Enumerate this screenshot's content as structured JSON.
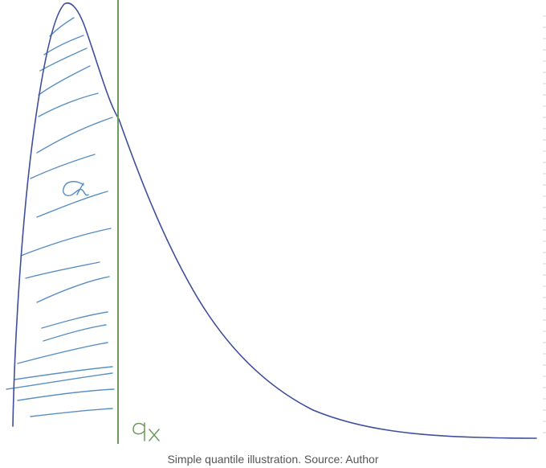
{
  "caption": "Simple quantile illustration. Source: Author",
  "colors": {
    "curve": "#3f4f9a",
    "hatching": "#5b8fc2",
    "quantile_line": "#6b9a5b",
    "caption_text": "#555555"
  },
  "labels": {
    "shaded_area": "α",
    "quantile": "qx"
  }
}
